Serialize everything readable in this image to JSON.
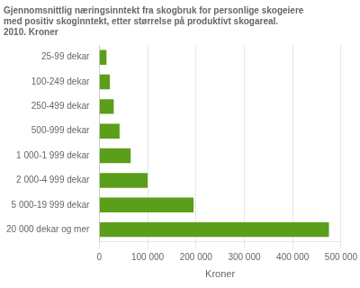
{
  "chart_data": {
    "type": "bar",
    "orientation": "horizontal",
    "title": "Gjennomsnittlig næringsinntekt fra skogbruk for personlige skogeiere\nmed positiv skoginntekt, etter størrelse på produktivt skogareal.\n2010. Kroner",
    "x_label": "Kroner",
    "categories": [
      "25-99 dekar",
      "100-249 dekar",
      "250-499 dekar",
      "500-999 dekar",
      "1 000-1 999 dekar",
      "2 000-4 999 dekar",
      "5 000-19 999 dekar",
      "20 000 dekar og mer"
    ],
    "values": [
      15000,
      22000,
      30000,
      42000,
      65000,
      100000,
      195000,
      475000
    ],
    "color": "#5a9e1a",
    "xlim": [
      0,
      500000
    ],
    "xticks": [
      0,
      {
        "value": 100000,
        "label": "100 000"
      },
      {
        "value": 200000,
        "label": "200 000"
      },
      {
        "value": 300000,
        "label": "300 000"
      },
      {
        "value": 400000,
        "label": "400 000"
      },
      {
        "value": 500000,
        "label": "500 000"
      }
    ],
    "grid": true
  }
}
